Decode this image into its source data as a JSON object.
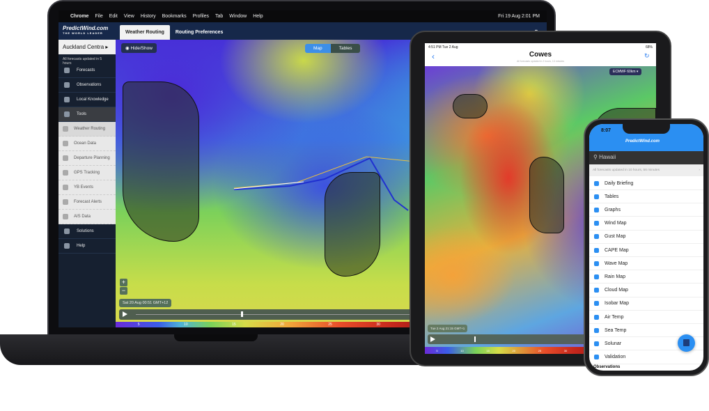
{
  "laptop": {
    "menubar": {
      "items": [
        "Chrome",
        "File",
        "Edit",
        "View",
        "History",
        "Bookmarks",
        "Profiles",
        "Tab",
        "Window",
        "Help"
      ],
      "clock": "Fri 19 Aug  2:01 PM"
    },
    "header": {
      "logo": "PredictWind.com",
      "tagline": "THE WORLD LEADER",
      "tabs": [
        "Weather Routing",
        "Routing Preferences"
      ],
      "language": "EN"
    },
    "sidebar": {
      "location": "Auckland Centra ▸",
      "updated": "All forecasts updated in 5 hours",
      "items": [
        {
          "label": "Forecasts",
          "icon": "wind-icon"
        },
        {
          "label": "Observations",
          "icon": "flag-icon"
        },
        {
          "label": "Local Knowledge",
          "icon": "pin-icon"
        },
        {
          "label": "Tools",
          "icon": "hammer-icon"
        }
      ],
      "tools": [
        {
          "label": "Weather Routing",
          "icon": "route-icon"
        },
        {
          "label": "Ocean Data",
          "icon": "ocean-icon"
        },
        {
          "label": "Departure Planning",
          "icon": "departure-icon"
        },
        {
          "label": "GPS Tracking",
          "icon": "gps-icon"
        },
        {
          "label": "YB Events",
          "icon": "events-icon"
        },
        {
          "label": "Forecast Alerts",
          "icon": "alert-icon"
        },
        {
          "label": "AIS Data",
          "icon": "ais-icon"
        }
      ],
      "bottom": [
        {
          "label": "Solutions",
          "icon": "phone-icon"
        },
        {
          "label": "Help",
          "icon": "help-icon"
        }
      ]
    },
    "map": {
      "hide_show": "Hide/Show",
      "view_tabs": [
        "Map",
        "Tables"
      ],
      "active_view": "Map",
      "zoom_in": "+",
      "zoom_out": "−",
      "time": "Sat 20 Aug 00:51 GMT+12",
      "timeline_progress": 0.26,
      "scale": [
        "5",
        "10",
        "15",
        "20",
        "25",
        "30",
        "35",
        "40",
        "45"
      ]
    }
  },
  "tablet": {
    "status_time": "4:51 PM  Tue 2 Aug",
    "battery": "68%",
    "title": "Cowes",
    "subtitle": "All forecasts updated in 2 hours, 13 minutes",
    "model": "ECMWF 60km ▾",
    "time": "Tue 2 Aug 21:15 GMT+1",
    "timeline_progress": 0.17,
    "scale": [
      "5",
      "10",
      "15",
      "20",
      "25",
      "30",
      "35",
      "40",
      "45"
    ]
  },
  "phone": {
    "time": "8:07",
    "logo": "PredictWind.com",
    "location": "Hawaii",
    "updated": "All forecasts updated in 10 hours, 56 minutes",
    "items": [
      "Daily Briefing",
      "Tables",
      "Graphs",
      "Wind Map",
      "Gust Map",
      "CAPE Map",
      "Wave Map",
      "Rain Map",
      "Cloud Map",
      "Isobar Map",
      "Air Temp",
      "Sea Temp",
      "Solunar",
      "Validation"
    ],
    "next_section": "Observations",
    "accent": "#2b8ff2"
  }
}
